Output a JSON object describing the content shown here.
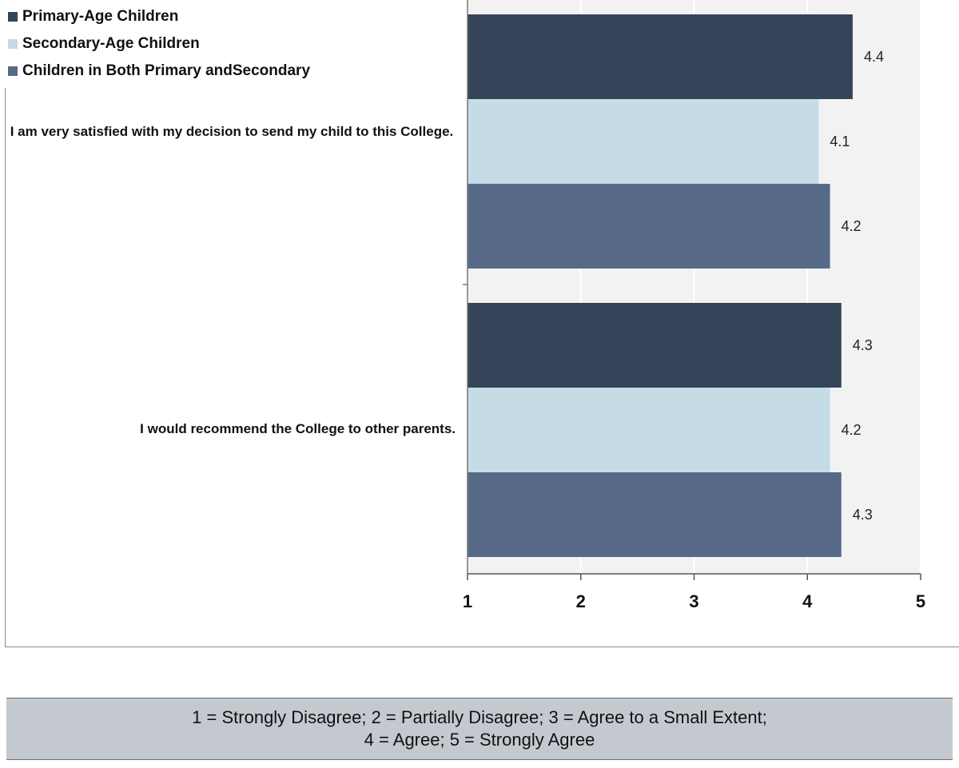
{
  "chart_data": {
    "type": "bar",
    "orientation": "horizontal",
    "categories": [
      "I am very satisfied with my decision to send my child to this College.",
      "I would recommend the College to other parents."
    ],
    "series": [
      {
        "name": "Primary-Age Children",
        "color": "#344459",
        "values": [
          4.4,
          4.3
        ]
      },
      {
        "name": "Secondary-Age Children",
        "color": "#c5dbe6",
        "values": [
          4.1,
          4.2
        ]
      },
      {
        "name": "Children in Both Primary andSecondary",
        "color": "#566a88",
        "values": [
          4.2,
          4.3
        ]
      }
    ],
    "xlim": [
      1,
      5
    ],
    "x_ticks": [
      "1",
      "2",
      "3",
      "4",
      "5"
    ],
    "legend_position": "top-left",
    "plot_background": "#f2f2f2",
    "title": "",
    "xlabel": "",
    "ylabel": ""
  },
  "scale_note": {
    "line1": "1 = Strongly Disagree; 2 = Partially Disagree; 3 = Agree to a Small Extent;",
    "line2": "4 = Agree; 5 = Strongly Agree"
  }
}
